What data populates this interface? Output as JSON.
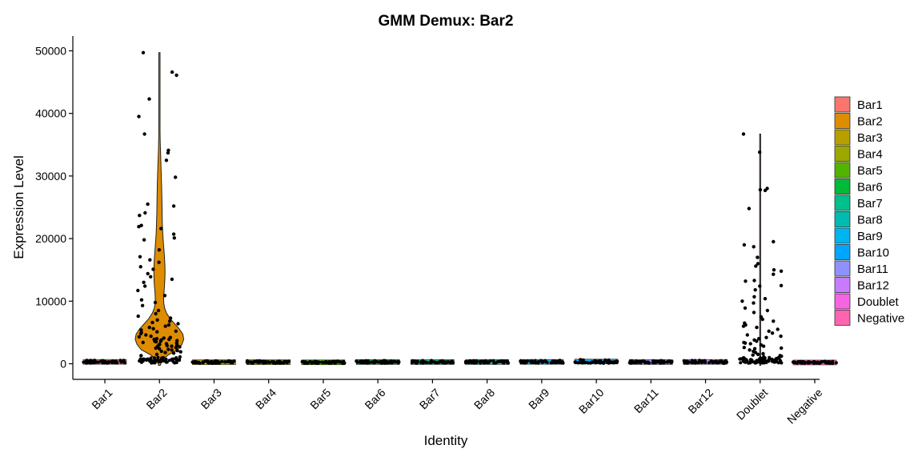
{
  "chart_data": {
    "type": "violin",
    "title": "GMM Demux: Bar2",
    "xlabel": "Identity",
    "ylabel": "Expression Level",
    "ylim": [
      -2500,
      52500
    ],
    "yticks": [
      0,
      10000,
      20000,
      30000,
      40000,
      50000
    ],
    "grid": false,
    "legend_position": "right",
    "categories": [
      "Bar1",
      "Bar2",
      "Bar3",
      "Bar4",
      "Bar5",
      "Bar6",
      "Bar7",
      "Bar8",
      "Bar9",
      "Bar10",
      "Bar11",
      "Bar12",
      "Doublet",
      "Negative"
    ],
    "colors": [
      "#F8766D",
      "#DE8C00",
      "#B79F00",
      "#9CA700",
      "#53B400",
      "#00BA38",
      "#00C08B",
      "#00BBB0",
      "#00B4EF",
      "#00A5FF",
      "#8F91FF",
      "#C77CFF",
      "#F564E3",
      "#FF64B0"
    ],
    "series": [
      {
        "name": "Bar1",
        "max": 600,
        "points": [
          150,
          220,
          300,
          180,
          260,
          350,
          120,
          280,
          200,
          410,
          240,
          160,
          330,
          270,
          190,
          450,
          210,
          310,
          170,
          250
        ]
      },
      {
        "name": "Bar2",
        "max": 49700,
        "points": [
          49700,
          46600,
          46100,
          42300,
          39500,
          36700,
          34100,
          33700,
          32500,
          29800,
          25500,
          25200,
          24100,
          23700,
          22100,
          21900,
          21600,
          20700,
          20100,
          19800,
          18200,
          17100,
          16600,
          16200,
          15500,
          15100,
          14400,
          13900,
          13500,
          13000,
          12400,
          11700,
          10900,
          10200,
          9800,
          9300,
          8500,
          8000,
          7600,
          7300,
          7000,
          6800,
          6600,
          6400,
          6200,
          6000,
          5800,
          5600,
          5400,
          5200,
          5000,
          4800,
          4600,
          4400,
          4300,
          4100,
          4000,
          3900,
          3800,
          3700,
          3600,
          3500,
          3400,
          3300,
          3200,
          3100,
          3000,
          2900,
          2800,
          2700,
          2600,
          2500,
          2400,
          2300,
          2200,
          2100,
          2000,
          1900,
          1800,
          1700,
          1500,
          1300,
          1100,
          900,
          700,
          3600,
          4200,
          2800,
          3100,
          5100,
          2600,
          3900
        ]
      },
      {
        "name": "Bar3",
        "max": 500,
        "points": [
          140,
          230,
          290,
          180,
          260,
          340,
          120,
          280,
          210,
          390,
          240,
          170,
          320,
          270
        ]
      },
      {
        "name": "Bar4",
        "max": 500,
        "points": [
          150,
          220,
          300,
          190,
          250,
          360,
          130,
          280,
          200,
          420,
          240,
          160,
          330,
          270
        ]
      },
      {
        "name": "Bar5",
        "max": 450,
        "points": [
          140,
          210,
          290,
          180,
          260,
          330,
          120,
          270,
          200,
          380,
          230,
          170
        ]
      },
      {
        "name": "Bar6",
        "max": 550,
        "points": [
          150,
          220,
          310,
          190,
          260,
          350,
          130,
          290,
          200,
          430,
          240,
          160,
          340,
          280
        ]
      },
      {
        "name": "Bar7",
        "max": 550,
        "points": [
          160,
          230,
          300,
          180,
          250,
          360,
          120,
          280,
          210,
          440,
          240,
          170,
          330,
          260
        ]
      },
      {
        "name": "Bar8",
        "max": 550,
        "points": [
          150,
          220,
          300,
          190,
          260,
          350,
          130,
          280,
          200,
          420,
          240,
          160,
          320,
          270
        ]
      },
      {
        "name": "Bar9",
        "max": 600,
        "points": [
          150,
          230,
          310,
          180,
          260,
          360,
          120,
          290,
          200,
          460,
          240,
          170,
          330,
          270
        ]
      },
      {
        "name": "Bar10",
        "max": 700,
        "points": [
          160,
          220,
          300,
          190,
          250,
          350,
          130,
          280,
          210,
          650,
          240,
          160,
          340,
          270
        ]
      },
      {
        "name": "Bar11",
        "max": 550,
        "points": [
          150,
          220,
          300,
          180,
          260,
          350,
          120,
          280,
          200,
          430,
          240,
          170,
          320,
          260
        ]
      },
      {
        "name": "Bar12",
        "max": 600,
        "points": [
          160,
          230,
          310,
          190,
          250,
          360,
          130,
          290,
          200,
          470,
          240,
          160,
          330,
          270
        ]
      },
      {
        "name": "Doublet",
        "max": 36700,
        "points": [
          36700,
          33800,
          28000,
          27800,
          27700,
          24800,
          19500,
          19000,
          18700,
          17000,
          16000,
          15600,
          15000,
          14800,
          14300,
          13300,
          13200,
          12500,
          12400,
          11800,
          10700,
          10400,
          10000,
          9700,
          8900,
          8500,
          8200,
          7500,
          7100,
          6800,
          6500,
          6200,
          6000,
          5800,
          5500,
          5200,
          4900,
          4600,
          4400,
          4200,
          4000,
          3800,
          3600,
          3400,
          3200,
          3000,
          2800,
          2600,
          2400,
          2200,
          2000,
          1800,
          1600,
          1400,
          1200,
          1000,
          900,
          800,
          700,
          600,
          500,
          450,
          400,
          350,
          300,
          250,
          200,
          150,
          550,
          650,
          750,
          850,
          950,
          1100,
          1300,
          1500,
          2500,
          3300,
          420,
          380,
          320,
          280,
          240,
          600,
          700,
          500
        ]
      },
      {
        "name": "Negative",
        "max": 400,
        "points": [
          140,
          210,
          280,
          180,
          250,
          320,
          120,
          270,
          200,
          350,
          230,
          170
        ]
      }
    ],
    "legend": [
      "Bar1",
      "Bar2",
      "Bar3",
      "Bar4",
      "Bar5",
      "Bar6",
      "Bar7",
      "Bar8",
      "Bar9",
      "Bar10",
      "Bar11",
      "Bar12",
      "Doublet",
      "Negative"
    ]
  }
}
